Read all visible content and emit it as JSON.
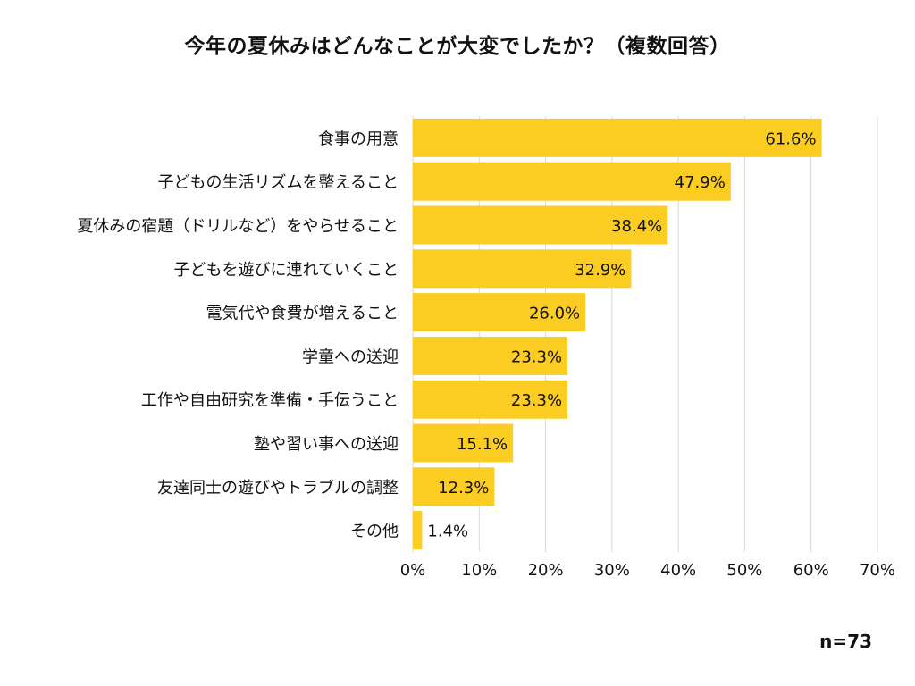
{
  "chart_data": {
    "type": "bar",
    "orientation": "horizontal",
    "title": "今年の夏休みはどんなことが大変でしたか？（複数回答）",
    "categories": [
      "食事の用意",
      "子どもの生活リズムを整えること",
      "夏休みの宿題（ドリルなど）をやらせること",
      "子どもを遊びに連れていくこと",
      "電気代や食費が増えること",
      "学童への送迎",
      "工作や自由研究を準備・手伝うこと",
      "塾や習い事への送迎",
      "友達同士の遊びやトラブルの調整",
      "その他"
    ],
    "values": [
      61.6,
      47.9,
      38.4,
      32.9,
      26.0,
      23.3,
      23.3,
      15.1,
      12.3,
      1.4
    ],
    "value_labels": [
      "61.6%",
      "47.9%",
      "38.4%",
      "32.9%",
      "26.0%",
      "23.3%",
      "23.3%",
      "15.1%",
      "12.3%",
      "1.4%"
    ],
    "xlim": [
      0,
      70
    ],
    "xticks": [
      "0%",
      "10%",
      "20%",
      "30%",
      "40%",
      "50%",
      "60%",
      "70%"
    ],
    "grid": "vertical",
    "bar_color": "#FBCD22",
    "grid_color": "#d9d9d9",
    "note": "n=73"
  }
}
